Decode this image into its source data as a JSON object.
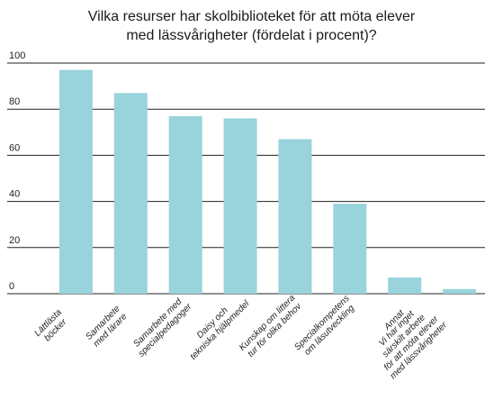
{
  "chart_data": {
    "type": "bar",
    "title": [
      "Vilka resurser har skolbiblioteket för att möta elever",
      "med lässvårigheter (fördelat i procent)?"
    ],
    "xlabel": "",
    "ylabel": "",
    "ylim": [
      0,
      100
    ],
    "yticks": [
      0,
      20,
      40,
      60,
      80,
      100
    ],
    "grid": true,
    "bar_color": "#99d3dc",
    "categories": [
      [
        "Lättlästa",
        "böcker"
      ],
      [
        "Samarbete",
        "med lärare"
      ],
      [
        "Samarbete med",
        "specialpedagoger"
      ],
      [
        "Daisy och",
        "tekniska hjälpmedel"
      ],
      [
        "Kunskap om littera",
        "tur för olika behov"
      ],
      [
        "Specialkompetens",
        "om läsutveckling"
      ],
      [
        "Annat"
      ],
      [
        "Vi har inget",
        "särskilt arbete",
        "för att möta elever",
        "med lässvårigheter"
      ]
    ],
    "values": [
      97,
      87,
      77,
      76,
      67,
      39,
      7,
      2
    ]
  }
}
